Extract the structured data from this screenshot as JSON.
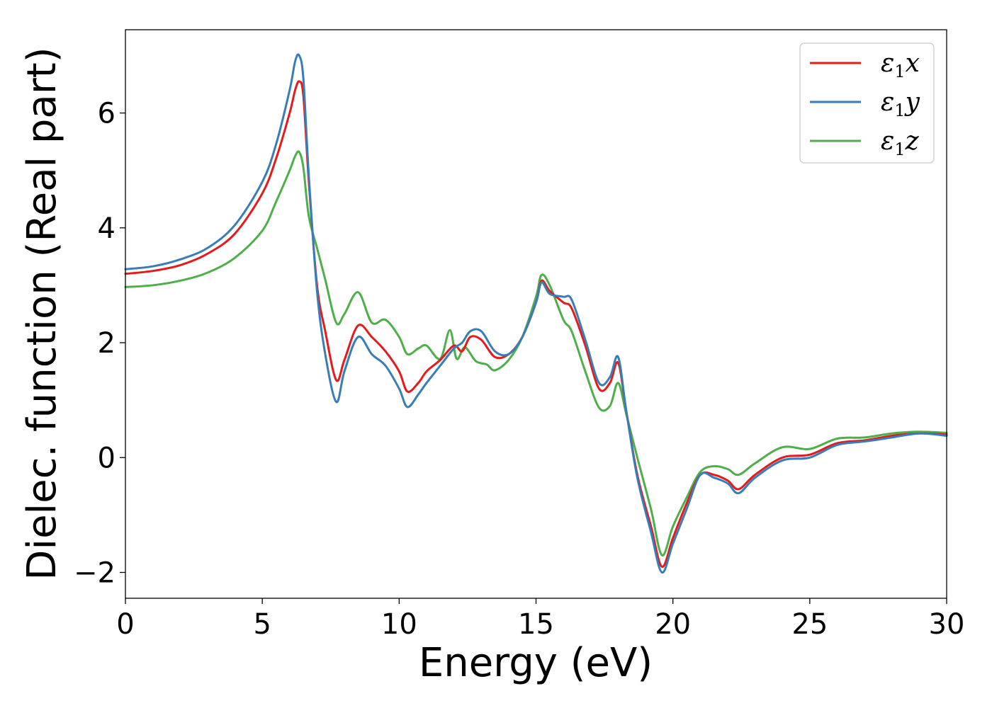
{
  "chart_data": {
    "type": "line",
    "title": "",
    "xlabel": "Energy (eV)",
    "ylabel": "Dielec. function (Real part)",
    "xlim": [
      0,
      30
    ],
    "ylim": [
      -2.45,
      7.45
    ],
    "xticks": [
      0,
      5,
      10,
      15,
      20,
      25,
      30
    ],
    "xtick_labels": [
      "0",
      "5",
      "10",
      "15",
      "20",
      "25",
      "30"
    ],
    "yticks": [
      -2,
      0,
      2,
      4,
      6
    ],
    "ytick_labels": [
      "−2",
      "0",
      "2",
      "4",
      "6"
    ],
    "grid": false,
    "legend_position": "top-right",
    "series": [
      {
        "name": "ε₁x",
        "legend_main": "ε",
        "legend_sub": "1",
        "legend_tail": "x",
        "color": "#e41a1c",
        "x": [
          0,
          1,
          2,
          3,
          4,
          5,
          5.5,
          6,
          6.2,
          6.35,
          6.5,
          6.7,
          7,
          7.3,
          7.7,
          8,
          8.5,
          9,
          9.5,
          10,
          10.3,
          10.7,
          11,
          11.5,
          12,
          12.3,
          12.6,
          13,
          13.5,
          14,
          14.5,
          15,
          15.2,
          15.5,
          16,
          16.3,
          16.8,
          17.3,
          17.7,
          18,
          18.3,
          18.7,
          19.2,
          19.6,
          20,
          20.5,
          21,
          21.5,
          22,
          22.4,
          23,
          24,
          25,
          26,
          27,
          28,
          29,
          30
        ],
        "y": [
          3.2,
          3.25,
          3.35,
          3.55,
          3.9,
          4.6,
          5.2,
          6.0,
          6.4,
          6.55,
          6.3,
          4.8,
          3.0,
          2.2,
          1.35,
          1.7,
          2.3,
          2.1,
          1.85,
          1.5,
          1.15,
          1.3,
          1.5,
          1.7,
          1.95,
          1.85,
          2.1,
          2.05,
          1.75,
          1.8,
          2.1,
          2.7,
          3.08,
          2.9,
          2.7,
          2.6,
          1.95,
          1.2,
          1.3,
          1.65,
          0.8,
          -0.3,
          -1.2,
          -1.9,
          -1.4,
          -0.8,
          -0.3,
          -0.3,
          -0.4,
          -0.55,
          -0.3,
          0.0,
          0.05,
          0.25,
          0.3,
          0.38,
          0.42,
          0.4
        ]
      },
      {
        "name": "ε₁y",
        "legend_main": "ε",
        "legend_sub": "1",
        "legend_tail": "y",
        "color": "#377eb8",
        "x": [
          0,
          1,
          2,
          3,
          4,
          5,
          5.5,
          6,
          6.2,
          6.35,
          6.5,
          6.7,
          7,
          7.3,
          7.7,
          8,
          8.5,
          9,
          9.5,
          10,
          10.3,
          10.7,
          11,
          11.5,
          12,
          12.3,
          12.6,
          13,
          13.5,
          14,
          14.5,
          15,
          15.2,
          15.5,
          16,
          16.3,
          16.8,
          17.3,
          17.7,
          18,
          18.3,
          18.7,
          19.2,
          19.6,
          20,
          20.5,
          21,
          21.5,
          22,
          22.4,
          23,
          24,
          25,
          26,
          27,
          28,
          29,
          30
        ],
        "y": [
          3.28,
          3.33,
          3.45,
          3.65,
          4.05,
          4.8,
          5.45,
          6.4,
          6.9,
          7.0,
          6.6,
          4.9,
          2.9,
          1.8,
          0.97,
          1.5,
          2.1,
          1.8,
          1.6,
          1.2,
          0.88,
          1.1,
          1.3,
          1.6,
          1.9,
          2.0,
          2.2,
          2.2,
          1.85,
          1.8,
          2.1,
          2.7,
          3.05,
          2.85,
          2.8,
          2.75,
          2.05,
          1.3,
          1.4,
          1.75,
          0.8,
          -0.35,
          -1.3,
          -2.0,
          -1.5,
          -0.9,
          -0.3,
          -0.35,
          -0.45,
          -0.62,
          -0.35,
          -0.05,
          0.0,
          0.22,
          0.28,
          0.35,
          0.42,
          0.38
        ]
      },
      {
        "name": "ε₁z",
        "legend_main": "ε",
        "legend_sub": "1",
        "legend_tail": "z",
        "color": "#4daf4a",
        "x": [
          0,
          1,
          2,
          3,
          4,
          5,
          5.5,
          6,
          6.2,
          6.35,
          6.5,
          6.7,
          7,
          7.3,
          7.7,
          8,
          8.5,
          9,
          9.5,
          10,
          10.3,
          10.7,
          11,
          11.5,
          11.85,
          12.1,
          12.4,
          12.8,
          13.2,
          13.5,
          14,
          14.5,
          15,
          15.2,
          15.5,
          16,
          16.3,
          16.8,
          17.3,
          17.7,
          18,
          18.3,
          18.7,
          19.2,
          19.6,
          20,
          20.5,
          21,
          21.5,
          22,
          22.4,
          23,
          24,
          25,
          26,
          27,
          28,
          29,
          30
        ],
        "y": [
          2.97,
          3.0,
          3.08,
          3.22,
          3.48,
          3.95,
          4.45,
          5.0,
          5.25,
          5.32,
          5.05,
          4.2,
          3.65,
          3.1,
          2.35,
          2.5,
          2.88,
          2.35,
          2.4,
          2.1,
          1.8,
          1.9,
          1.95,
          1.72,
          2.22,
          1.72,
          1.92,
          1.68,
          1.62,
          1.52,
          1.7,
          2.1,
          2.8,
          3.18,
          3.0,
          2.4,
          2.2,
          1.5,
          0.87,
          0.9,
          1.3,
          0.75,
          0.0,
          -0.9,
          -1.7,
          -1.2,
          -0.7,
          -0.25,
          -0.15,
          -0.2,
          -0.3,
          -0.1,
          0.18,
          0.15,
          0.33,
          0.35,
          0.42,
          0.45,
          0.43
        ]
      }
    ]
  }
}
